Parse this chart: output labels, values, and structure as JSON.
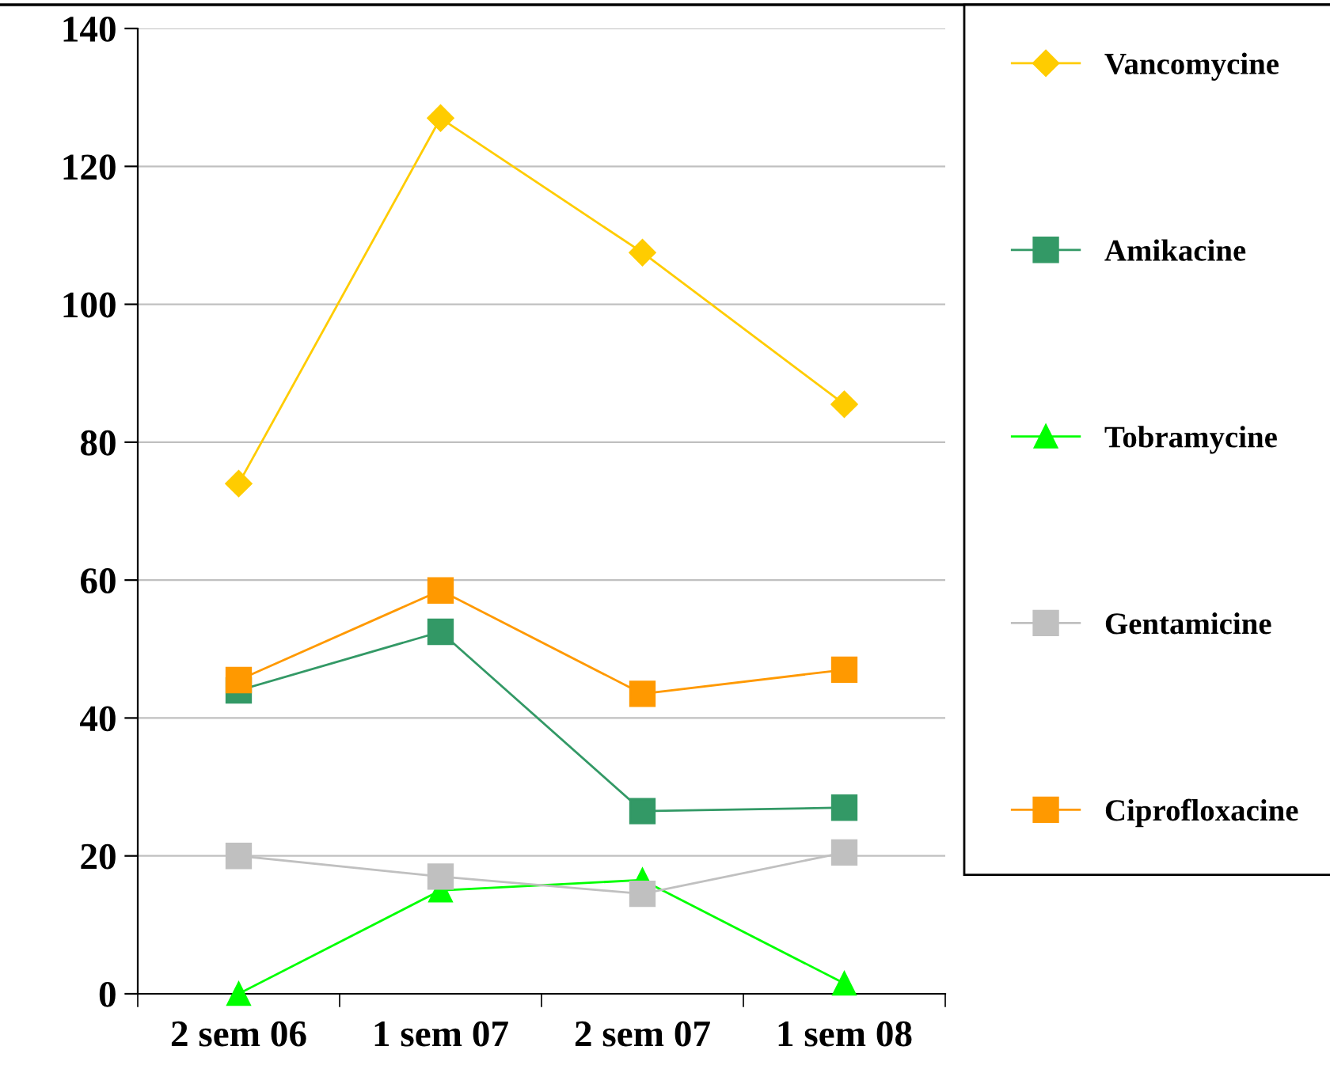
{
  "chart_data": {
    "type": "line",
    "categories": [
      "2 sem 06",
      "1 sem 07",
      "2 sem 07",
      "1 sem 08"
    ],
    "series": [
      {
        "name": "Vancomycine",
        "color": "#ffcc00",
        "marker": "diamond",
        "values": [
          74,
          127,
          107.5,
          85.5
        ]
      },
      {
        "name": "Amikacine",
        "color": "#339966",
        "marker": "square",
        "values": [
          44,
          52.5,
          26.5,
          27
        ]
      },
      {
        "name": "Tobramycine",
        "color": "#00ff00",
        "marker": "triangle",
        "values": [
          0,
          15,
          16.5,
          1.5
        ]
      },
      {
        "name": "Gentamicine",
        "color": "#c0c0c0",
        "marker": "square",
        "values": [
          20,
          17,
          14.5,
          20.5
        ]
      },
      {
        "name": "Ciprofloxacine",
        "color": "#ff9900",
        "marker": "square",
        "values": [
          45.5,
          58.5,
          43.5,
          47
        ]
      }
    ],
    "ylim": [
      0,
      140
    ],
    "yticks": [
      0,
      20,
      40,
      60,
      80,
      100,
      120,
      140
    ],
    "grid": "y",
    "legend": "right",
    "line_style": "solid"
  }
}
